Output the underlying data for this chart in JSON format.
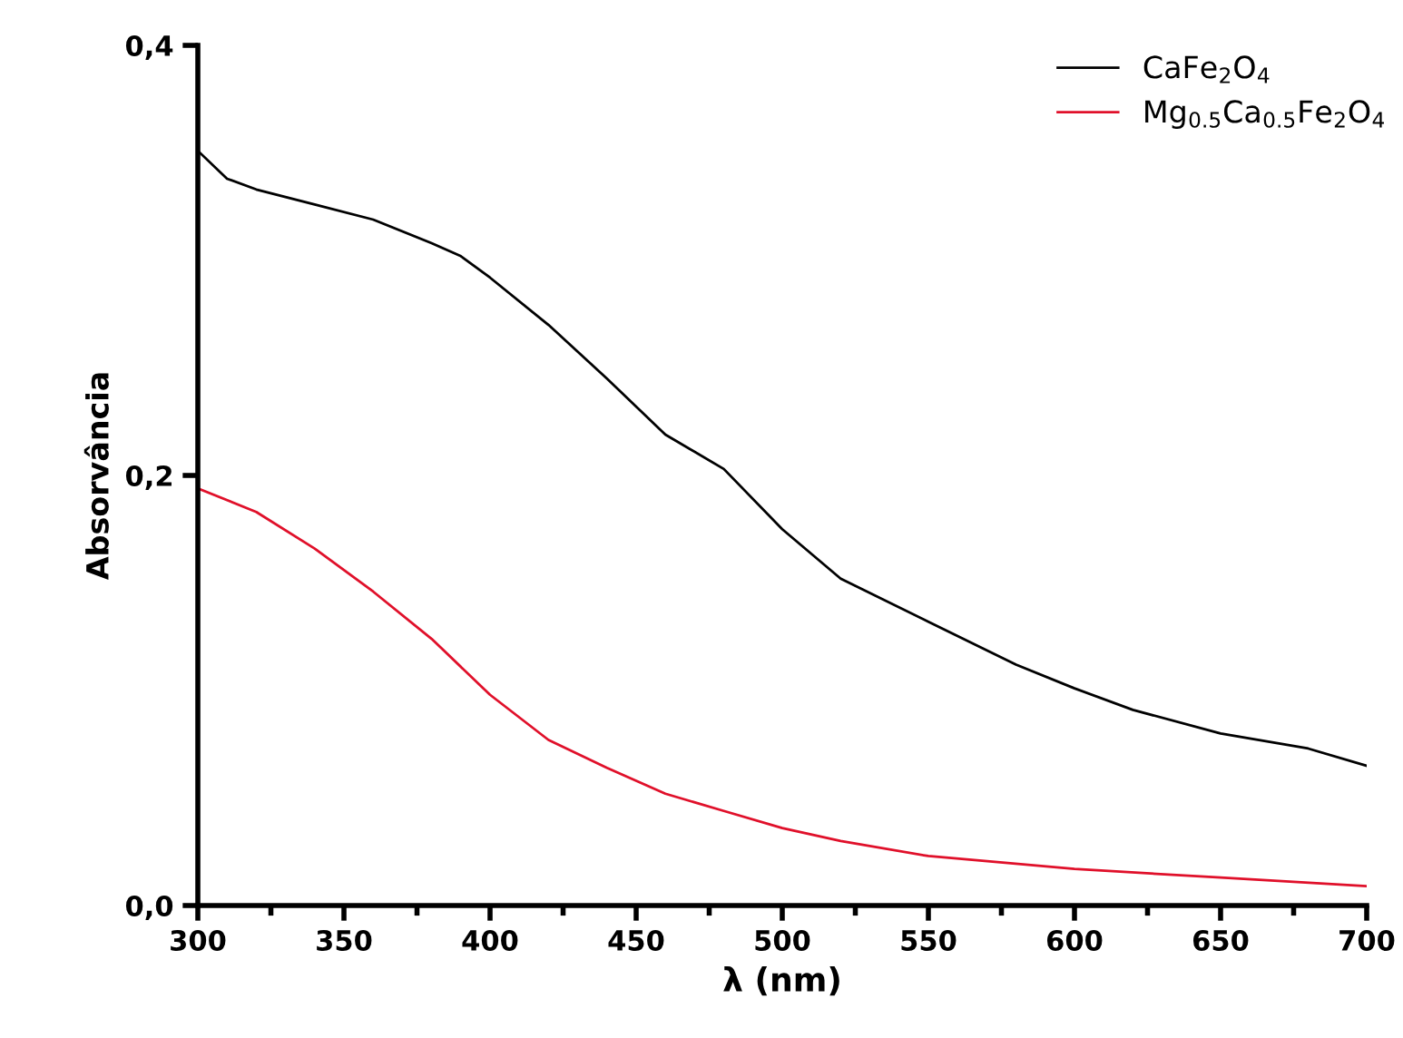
{
  "chart_data": {
    "type": "line",
    "xlabel": "λ (nm)",
    "ylabel": "Absorvância",
    "xlim": [
      300,
      700
    ],
    "ylim": [
      0,
      0.4
    ],
    "xticks": [
      300,
      {
        "value": 325,
        "label": null
      },
      350,
      {
        "value": 375,
        "label": null
      },
      400,
      {
        "value": 425,
        "label": null
      },
      450,
      {
        "value": 475,
        "label": null
      },
      500,
      {
        "value": 525,
        "label": null
      },
      550,
      {
        "value": 575,
        "label": null
      },
      600,
      {
        "value": 625,
        "label": null
      },
      650,
      {
        "value": 675,
        "label": null
      },
      700
    ],
    "yticks": [
      {
        "value": 0,
        "label": "0,0"
      },
      {
        "value": 0.2,
        "label": "0,2"
      },
      {
        "value": 0.4,
        "label": "0,4"
      }
    ],
    "grid": false,
    "legend": "top right",
    "marker": "none",
    "line_style": "solid",
    "series": [
      {
        "name": "CaFe$_{2}$O$_{4}$",
        "color": "#000000",
        "x": [
          300,
          310,
          320,
          340,
          360,
          380,
          390,
          400,
          420,
          440,
          460,
          480,
          500,
          520,
          550,
          580,
          600,
          620,
          650,
          680,
          700
        ],
        "values": [
          0.351,
          0.338,
          0.333,
          0.326,
          0.319,
          0.308,
          0.302,
          0.292,
          0.27,
          0.245,
          0.219,
          0.203,
          0.175,
          0.152,
          0.132,
          0.112,
          0.101,
          0.091,
          0.08,
          0.073,
          0.065
        ]
      },
      {
        "name": "Mg$_{0.5}$Ca$_{0.5}$Fe$_{2}$O$_{4}$",
        "color": "#e0102a",
        "x": [
          300,
          320,
          340,
          360,
          380,
          400,
          420,
          440,
          460,
          480,
          500,
          520,
          550,
          600,
          650,
          700
        ],
        "values": [
          0.194,
          0.183,
          0.166,
          0.146,
          0.124,
          0.098,
          0.077,
          0.064,
          0.052,
          0.044,
          0.036,
          0.03,
          0.023,
          0.017,
          0.013,
          0.009
        ]
      }
    ]
  }
}
